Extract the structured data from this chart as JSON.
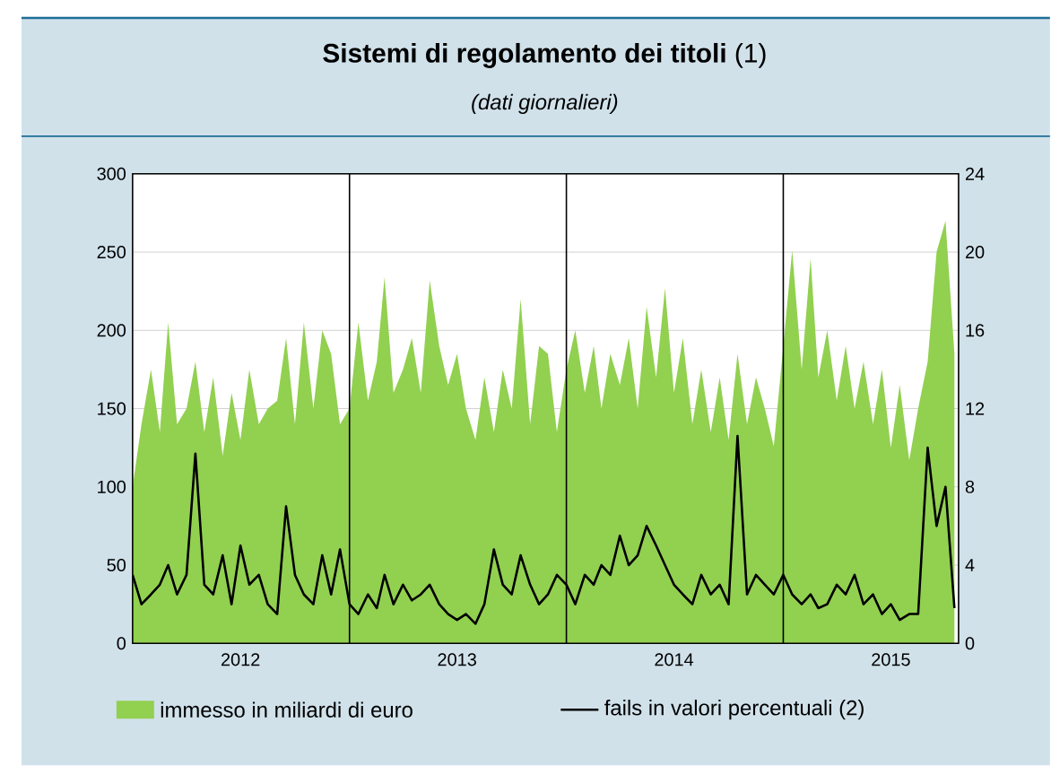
{
  "chart_data": {
    "type": "area",
    "title": "**Sistemi di regolamento dei titoli** (1)",
    "subtitle": "*(dati giornalieri)*",
    "x": [
      "2012-01-01",
      "2012-01-16",
      "2012-02-01",
      "2012-02-16",
      "2012-03-01",
      "2012-03-16",
      "2012-04-01",
      "2012-04-16",
      "2012-05-01",
      "2012-05-16",
      "2012-06-01",
      "2012-06-16",
      "2012-07-01",
      "2012-07-16",
      "2012-08-01",
      "2012-08-16",
      "2012-09-01",
      "2012-09-16",
      "2012-10-01",
      "2012-10-16",
      "2012-11-01",
      "2012-11-16",
      "2012-12-01",
      "2012-12-16",
      "2013-01-01",
      "2013-01-16",
      "2013-02-01",
      "2013-02-16",
      "2013-03-01",
      "2013-03-16",
      "2013-04-01",
      "2013-04-16",
      "2013-05-01",
      "2013-05-16",
      "2013-06-01",
      "2013-06-16",
      "2013-07-01",
      "2013-07-16",
      "2013-08-01",
      "2013-08-16",
      "2013-09-01",
      "2013-09-16",
      "2013-10-01",
      "2013-10-16",
      "2013-11-01",
      "2013-11-16",
      "2013-12-01",
      "2013-12-16",
      "2014-01-01",
      "2014-01-16",
      "2014-02-01",
      "2014-02-16",
      "2014-03-01",
      "2014-03-16",
      "2014-04-01",
      "2014-04-16",
      "2014-05-01",
      "2014-05-16",
      "2014-06-01",
      "2014-06-16",
      "2014-07-01",
      "2014-07-16",
      "2014-08-01",
      "2014-08-16",
      "2014-09-01",
      "2014-09-16",
      "2014-10-01",
      "2014-10-16",
      "2014-11-01",
      "2014-11-16",
      "2014-12-01",
      "2014-12-16",
      "2015-01-01",
      "2015-01-16",
      "2015-02-01",
      "2015-02-16",
      "2015-03-01",
      "2015-03-16",
      "2015-04-01",
      "2015-04-16",
      "2015-05-01",
      "2015-05-16",
      "2015-06-01",
      "2015-06-16",
      "2015-07-01",
      "2015-07-16",
      "2015-08-01",
      "2015-08-16",
      "2015-09-01",
      "2015-09-16",
      "2015-10-01",
      "2015-10-16"
    ],
    "series": [
      {
        "name": "immesso in miliardi di euro",
        "color": "#92d050",
        "values": [
          100,
          140,
          175,
          135,
          205,
          140,
          150,
          180,
          135,
          170,
          120,
          160,
          130,
          175,
          140,
          150,
          155,
          195,
          140,
          205,
          150,
          200,
          185,
          140,
          150,
          205,
          155,
          180,
          234,
          160,
          175,
          195,
          160,
          232,
          190,
          165,
          185,
          150,
          130,
          170,
          135,
          175,
          150,
          220,
          140,
          190,
          185,
          135,
          175,
          200,
          160,
          190,
          150,
          185,
          165,
          195,
          150,
          215,
          170,
          227,
          160,
          195,
          140,
          175,
          135,
          170,
          130,
          185,
          140,
          170,
          150,
          126,
          190,
          251,
          175,
          246,
          170,
          200,
          155,
          190,
          150,
          180,
          140,
          175,
          125,
          165,
          117,
          150,
          180,
          250,
          270,
          185
        ]
      },
      {
        "name": "fails in valori percentuali (2)",
        "type": "line",
        "axis": "y2",
        "color": "#000000",
        "values": [
          3.5,
          2.0,
          2.5,
          3.0,
          4.0,
          2.5,
          3.5,
          9.7,
          3.0,
          2.5,
          4.5,
          2.0,
          5.0,
          3.0,
          3.5,
          2.0,
          1.5,
          7.0,
          3.5,
          2.5,
          2.0,
          4.5,
          2.5,
          4.8,
          2.0,
          1.5,
          2.5,
          1.8,
          3.5,
          2.0,
          3.0,
          2.2,
          2.5,
          3.0,
          2.0,
          1.5,
          1.2,
          1.5,
          1.0,
          2.0,
          4.8,
          3.0,
          2.5,
          4.5,
          3.0,
          2.0,
          2.5,
          3.5,
          3.0,
          2.0,
          3.5,
          3.0,
          4.0,
          3.5,
          5.5,
          4.0,
          4.5,
          6.0,
          5.0,
          4.0,
          3.0,
          2.5,
          2.0,
          3.5,
          2.5,
          3.0,
          2.0,
          10.6,
          2.5,
          3.5,
          3.0,
          2.5,
          3.5,
          2.5,
          2.0,
          2.5,
          1.8,
          2.0,
          3.0,
          2.5,
          3.5,
          2.0,
          2.5,
          1.5,
          2.0,
          1.2,
          1.5,
          1.5,
          10.0,
          6.0,
          8.0,
          1.8
        ]
      }
    ],
    "xlim": [
      "2012-01-01",
      "2015-10-23"
    ],
    "xticks": [
      {
        "value": "2012-07-01",
        "label": "2012"
      },
      {
        "value": "2013-07-01",
        "label": "2013"
      },
      {
        "value": "2014-07-01",
        "label": "2014"
      },
      {
        "value": "2015-07-01",
        "label": "2015"
      }
    ],
    "ylim": [
      0,
      300
    ],
    "yticks": [
      0,
      50,
      100,
      150,
      200,
      250,
      300
    ],
    "y2lim": [
      0,
      24
    ],
    "y2ticks": [
      0,
      4,
      8,
      12,
      16,
      20,
      24
    ],
    "ref_lines": [
      {
        "axis": "x",
        "value": "2013-01-01",
        "color": "#000000"
      },
      {
        "axis": "x",
        "value": "2014-01-01",
        "color": "#000000"
      },
      {
        "axis": "x",
        "value": "2015-01-01",
        "color": "#000000"
      }
    ],
    "grid": "y",
    "legend": "bottom"
  }
}
